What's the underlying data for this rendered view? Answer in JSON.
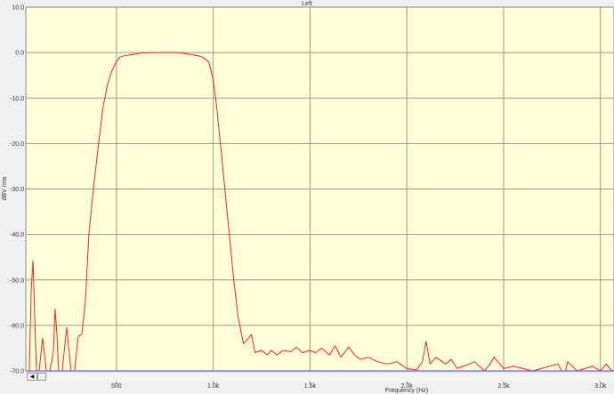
{
  "chart_data": {
    "type": "line",
    "title": "Left",
    "xlabel": "Frequency (Hz)",
    "ylabel": "dBV rms",
    "xlim": [
      32,
      3070
    ],
    "ylim": [
      -70,
      10
    ],
    "grid": true,
    "x_ticks": [
      500,
      1000,
      1500,
      2000,
      2500,
      3000
    ],
    "x_tick_labels": [
      "500",
      "1.0k",
      "1.5k",
      "2.0k",
      "2.5k",
      "3.0k"
    ],
    "y_ticks": [
      10,
      0,
      -10,
      -20,
      -30,
      -40,
      -50,
      -60,
      -70
    ],
    "y_tick_labels": [
      "10.0",
      "0.0",
      "-10.0",
      "-20.0",
      "-30.0",
      "-40.0",
      "-50.0",
      "-60.0",
      "-70.0"
    ],
    "series": [
      {
        "color": "#ff2020",
        "x": [
          32,
          50,
          60,
          69,
          78,
          87,
          101,
          119,
          138,
          156,
          174,
          183,
          193,
          202,
          220,
          243,
          266,
          284,
          303,
          321,
          339,
          358,
          381,
          408,
          431,
          454,
          477,
          500,
          518,
          550,
          587,
          630,
          679,
          750,
          817,
          850,
          885,
          920,
          945,
          977,
          1000,
          1018,
          1037,
          1060,
          1083,
          1106,
          1128,
          1156,
          1179,
          1197,
          1216,
          1250,
          1280,
          1300,
          1330,
          1360,
          1400,
          1430,
          1460,
          1500,
          1530,
          1560,
          1600,
          1630,
          1660,
          1700,
          1730,
          1760,
          1800,
          1850,
          1900,
          1950,
          2000,
          2050,
          2080,
          2100,
          2120,
          2150,
          2200,
          2230,
          2260,
          2350,
          2400,
          2430,
          2450,
          2500,
          2550,
          2600,
          2650,
          2780,
          2800,
          2820,
          2830,
          2880,
          2960,
          3000,
          3030,
          3060
        ],
        "y": [
          -70,
          -70,
          -52,
          -45.8,
          -58,
          -70,
          -70,
          -62.8,
          -70,
          -70,
          -66,
          -56.4,
          -62,
          -70,
          -70,
          -60.5,
          -70,
          -70,
          -62.4,
          -62,
          -55,
          -40,
          -30,
          -20,
          -12,
          -7,
          -4,
          -2,
          -1,
          -0.6,
          -0.4,
          -0.1,
          0,
          0,
          0,
          -0.2,
          -0.4,
          -0.7,
          -1,
          -2,
          -6,
          -12,
          -20,
          -30,
          -40,
          -50,
          -58,
          -64,
          -63,
          -62,
          -66,
          -65.5,
          -66.5,
          -65.5,
          -66.5,
          -65.5,
          -65.8,
          -64.8,
          -66,
          -65.5,
          -66,
          -65,
          -66.5,
          -64.5,
          -67,
          -64.7,
          -66.5,
          -67.5,
          -67,
          -68,
          -68.5,
          -68,
          -69.5,
          -69.8,
          -68,
          -63.5,
          -68.5,
          -67,
          -68.5,
          -67.5,
          -69.5,
          -68,
          -70,
          -68.5,
          -67,
          -69.5,
          -69,
          -69.5,
          -70,
          -68.5,
          -70,
          -70,
          -68,
          -70,
          -69,
          -70,
          -68.5,
          -70
        ]
      },
      {
        "color": "#6060ff",
        "x": [
          32,
          3070
        ],
        "y": [
          -70,
          -70
        ]
      }
    ]
  }
}
